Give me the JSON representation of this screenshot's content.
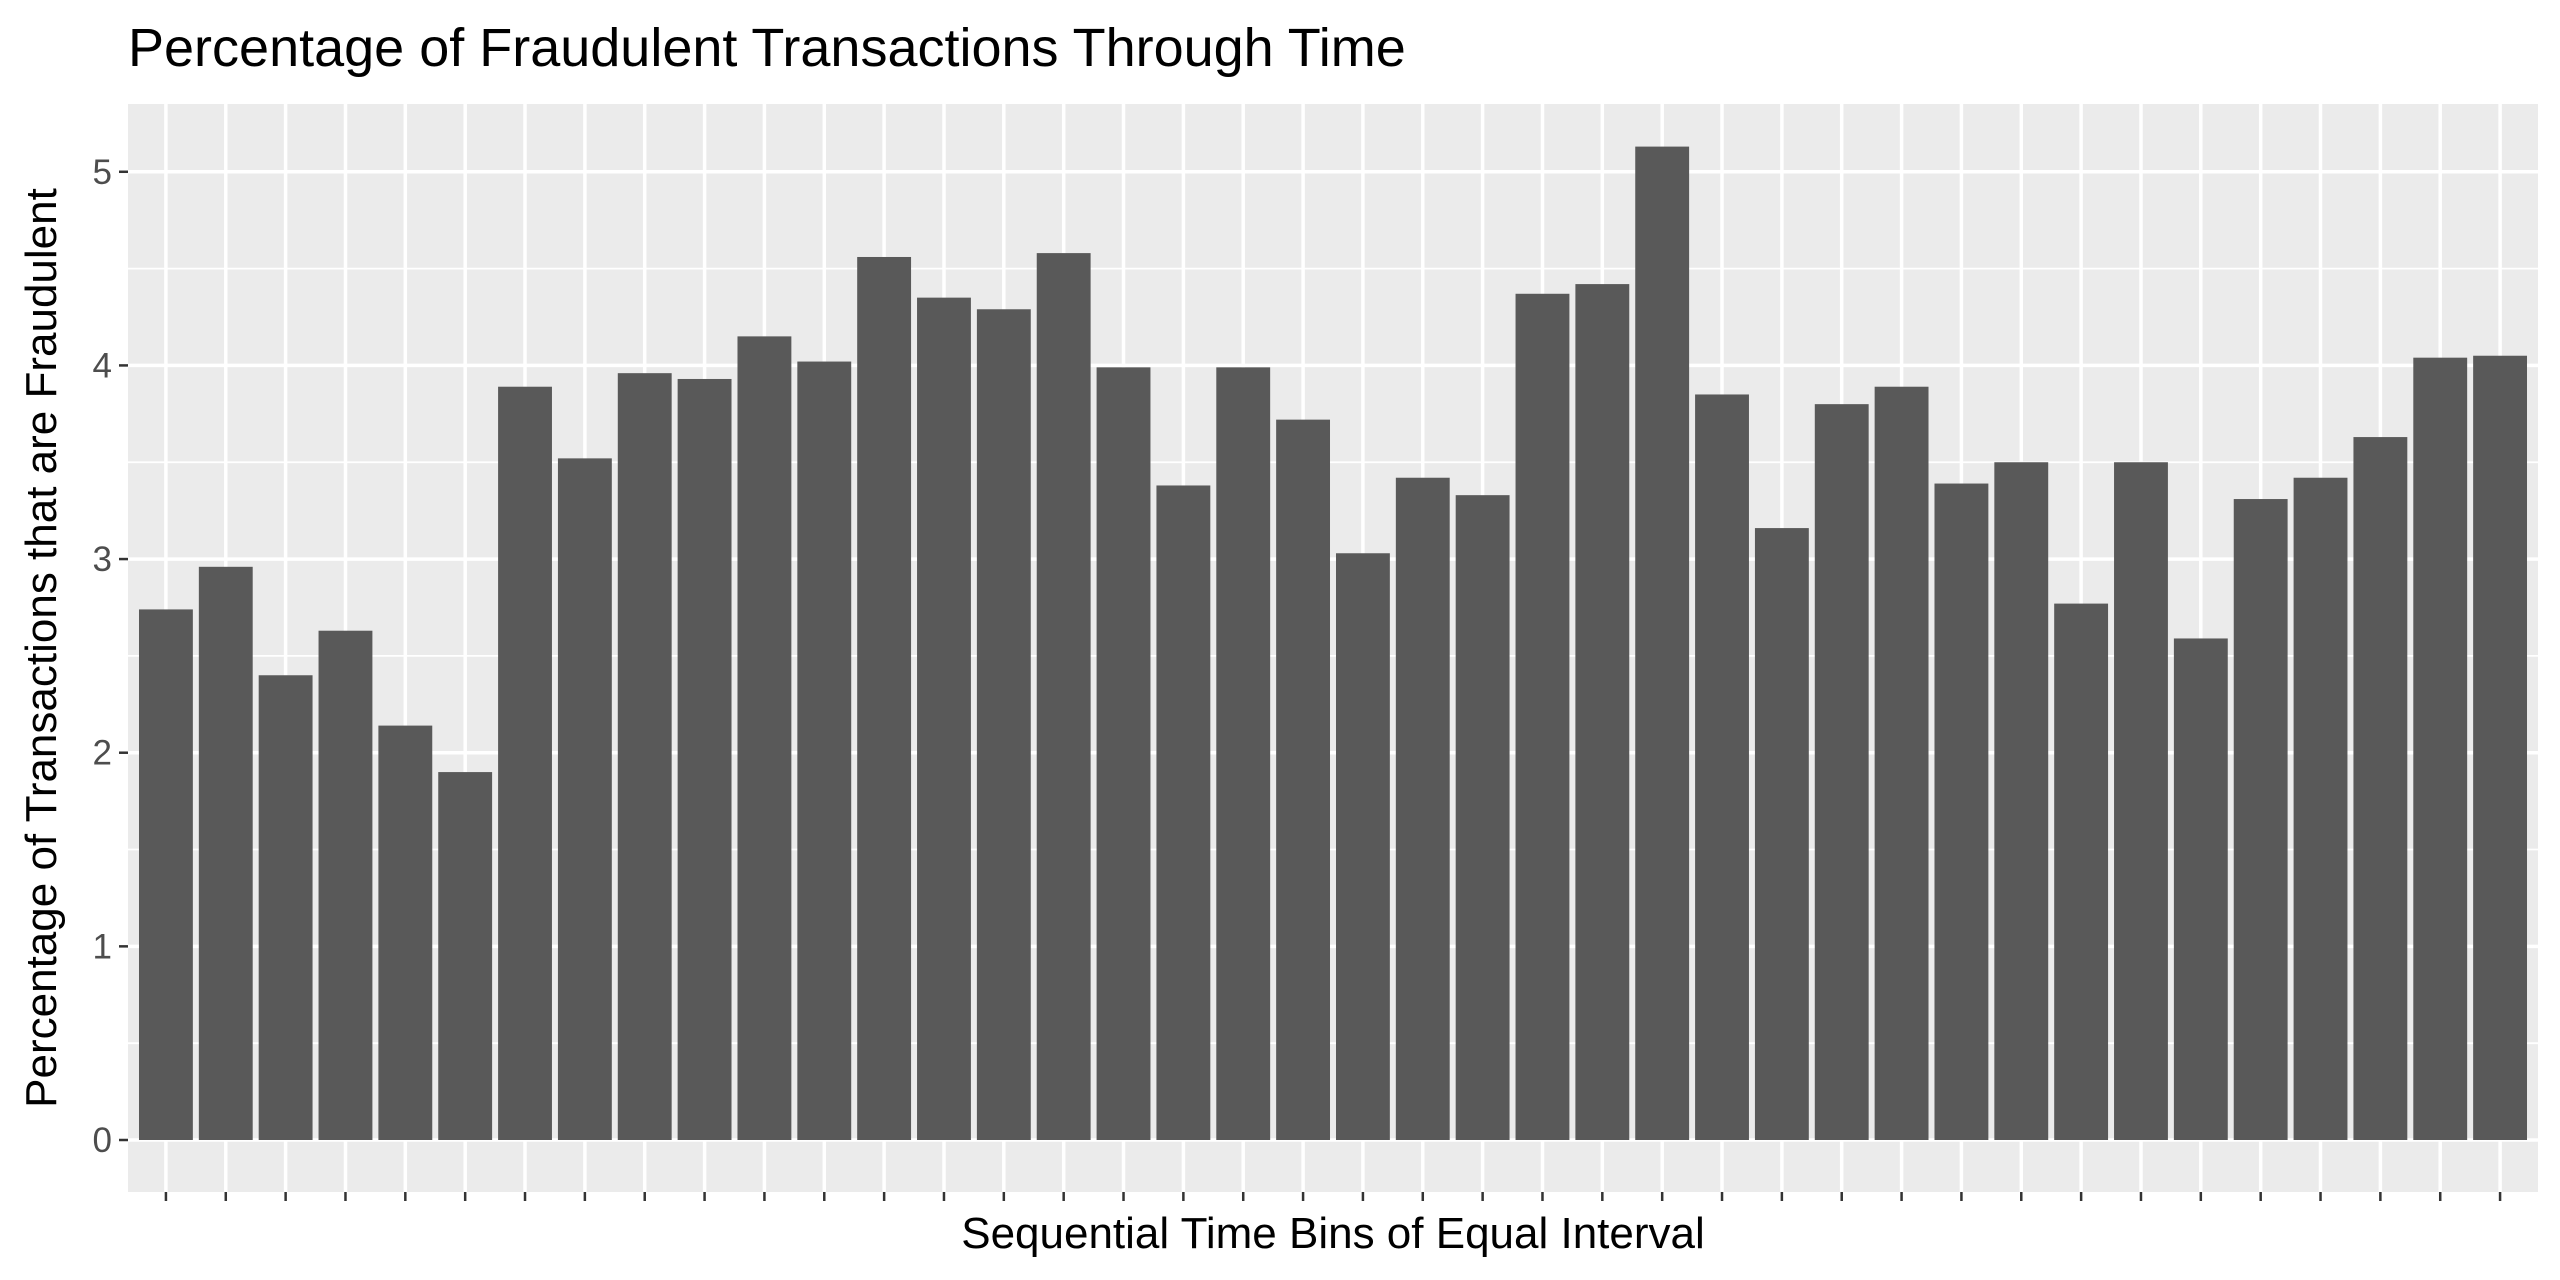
{
  "chart_data": {
    "type": "bar",
    "title": "Percentage of Fraudulent Transactions Through Time",
    "xlabel": "Sequential Time Bins of Equal Interval",
    "ylabel": "Percentage of Transactions that are Fraudulent",
    "ylim": [
      0,
      5.35
    ],
    "yticks": [
      0,
      1,
      2,
      3,
      4,
      5
    ],
    "grid": true,
    "legend": "none",
    "values": [
      2.74,
      2.96,
      2.4,
      2.63,
      2.14,
      1.9,
      3.89,
      3.52,
      3.96,
      3.93,
      4.15,
      4.02,
      4.56,
      4.35,
      4.29,
      4.58,
      3.99,
      3.38,
      3.99,
      3.72,
      3.03,
      3.42,
      3.33,
      4.37,
      4.42,
      5.13,
      3.85,
      3.16,
      3.8,
      3.89,
      3.39,
      3.5,
      2.77,
      3.5,
      2.59,
      3.31,
      3.42,
      3.63,
      4.04,
      4.05
    ],
    "colors": {
      "bar": "#595959",
      "panel": "#ebebeb",
      "grid": "#ffffff"
    }
  }
}
